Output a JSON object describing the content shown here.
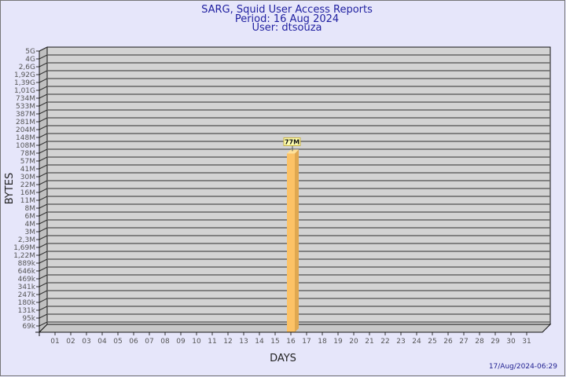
{
  "header": {
    "title": "SARG, Squid User Access Reports",
    "period": "Period: 16 Aug 2024",
    "user": "User: dtsouza"
  },
  "footer": {
    "timestamp": "17/Aug/2024-06:29"
  },
  "colors": {
    "background": "#e6e6fa",
    "plot": "#d3d3d3",
    "bar": "#fcc266",
    "title": "#1f1fa0"
  },
  "chart_data": {
    "type": "bar",
    "xlabel": "DAYS",
    "ylabel": "BYTES",
    "y_scale": "log",
    "y_tick_labels": [
      "5G",
      "4G",
      "2,6G",
      "1,92G",
      "1,39G",
      "1,01G",
      "734M",
      "533M",
      "387M",
      "281M",
      "204M",
      "148M",
      "108M",
      "78M",
      "57M",
      "41M",
      "30M",
      "22M",
      "16M",
      "11M",
      "8M",
      "6M",
      "4M",
      "3M",
      "2,3M",
      "1,69M",
      "1,22M",
      "889k",
      "646k",
      "469k",
      "341k",
      "247k",
      "180k",
      "131k",
      "95k",
      "69k"
    ],
    "categories": [
      "01",
      "02",
      "03",
      "04",
      "05",
      "06",
      "07",
      "08",
      "09",
      "10",
      "11",
      "12",
      "13",
      "14",
      "15",
      "16",
      "17",
      "18",
      "19",
      "20",
      "21",
      "22",
      "23",
      "24",
      "25",
      "26",
      "27",
      "28",
      "29",
      "30",
      "31"
    ],
    "bars": [
      {
        "day": "16",
        "value": "77M",
        "label": "77M"
      }
    ],
    "grid": true
  }
}
